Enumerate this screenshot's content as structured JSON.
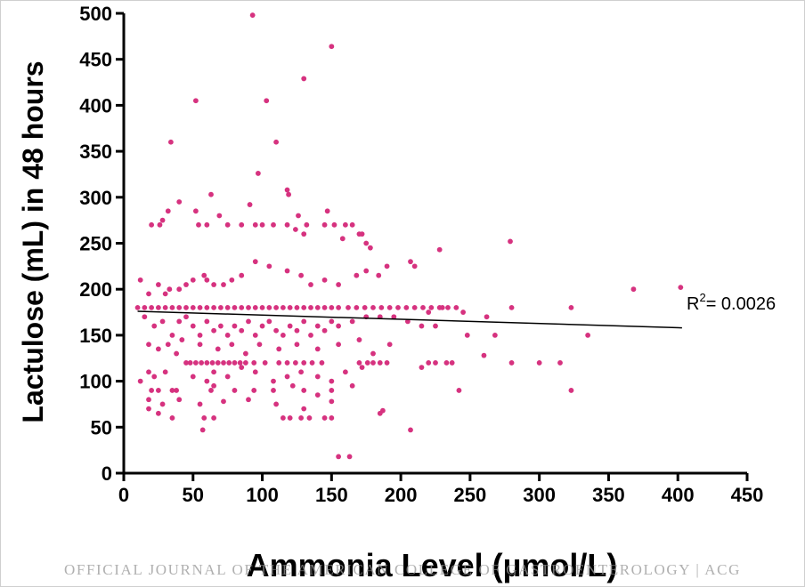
{
  "chart_data": {
    "type": "scatter",
    "xlabel": "Ammonia Level (µmol/L)",
    "ylabel": "Lactulose (mL) in 48 hours",
    "xlim": [
      0,
      450
    ],
    "ylim": [
      0,
      500
    ],
    "x_ticks": [
      0,
      50,
      100,
      150,
      200,
      250,
      300,
      350,
      400,
      450
    ],
    "y_ticks": [
      0,
      50,
      100,
      150,
      200,
      250,
      300,
      350,
      400,
      450,
      500
    ],
    "marker_color": "#d6327f",
    "line_color": "#000000",
    "annotation": {
      "base": "R",
      "sup": "2",
      "text": "= 0.0026"
    },
    "trendline": [
      [
        10,
        176
      ],
      [
        403,
        158
      ]
    ],
    "series": [
      {
        "points": [
          [
            93,
            498
          ],
          [
            150,
            464
          ],
          [
            130,
            429
          ],
          [
            103,
            405
          ],
          [
            52,
            405
          ],
          [
            110,
            360
          ],
          [
            34,
            360
          ],
          [
            97,
            326
          ],
          [
            118,
            308
          ],
          [
            119,
            303
          ],
          [
            63,
            303
          ],
          [
            91,
            292
          ],
          [
            40,
            295
          ],
          [
            52,
            285
          ],
          [
            32,
            285
          ],
          [
            147,
            285
          ],
          [
            126,
            280
          ],
          [
            69,
            280
          ],
          [
            28,
            275
          ],
          [
            20,
            270
          ],
          [
            26,
            270
          ],
          [
            54,
            270
          ],
          [
            60,
            270
          ],
          [
            75,
            270
          ],
          [
            85,
            270
          ],
          [
            95,
            270
          ],
          [
            100,
            270
          ],
          [
            108,
            270
          ],
          [
            118,
            270
          ],
          [
            124,
            265
          ],
          [
            130,
            260
          ],
          [
            132,
            270
          ],
          [
            145,
            270
          ],
          [
            152,
            270
          ],
          [
            160,
            270
          ],
          [
            165,
            270
          ],
          [
            170,
            260
          ],
          [
            158,
            255
          ],
          [
            175,
            250
          ],
          [
            178,
            245
          ],
          [
            172,
            260
          ],
          [
            228,
            243
          ],
          [
            279,
            252
          ],
          [
            207,
            230
          ],
          [
            210,
            225
          ],
          [
            190,
            225
          ],
          [
            184,
            215
          ],
          [
            175,
            220
          ],
          [
            168,
            215
          ],
          [
            155,
            205
          ],
          [
            145,
            210
          ],
          [
            135,
            205
          ],
          [
            128,
            215
          ],
          [
            118,
            220
          ],
          [
            105,
            225
          ],
          [
            95,
            230
          ],
          [
            85,
            215
          ],
          [
            78,
            210
          ],
          [
            72,
            205
          ],
          [
            65,
            205
          ],
          [
            60,
            210
          ],
          [
            58,
            215
          ],
          [
            50,
            210
          ],
          [
            45,
            205
          ],
          [
            40,
            200
          ],
          [
            33,
            200
          ],
          [
            30,
            195
          ],
          [
            25,
            205
          ],
          [
            12,
            210
          ],
          [
            18,
            195
          ],
          [
            368,
            200
          ],
          [
            402,
            202
          ],
          [
            220,
            175
          ],
          [
            230,
            180
          ],
          [
            245,
            175
          ],
          [
            262,
            170
          ],
          [
            280,
            180
          ],
          [
            323,
            180
          ],
          [
            10,
            180
          ],
          [
            15,
            180
          ],
          [
            20,
            180
          ],
          [
            25,
            180
          ],
          [
            30,
            180
          ],
          [
            35,
            180
          ],
          [
            40,
            180
          ],
          [
            45,
            180
          ],
          [
            50,
            180
          ],
          [
            55,
            180
          ],
          [
            60,
            180
          ],
          [
            65,
            180
          ],
          [
            70,
            180
          ],
          [
            75,
            180
          ],
          [
            80,
            180
          ],
          [
            85,
            180
          ],
          [
            90,
            180
          ],
          [
            95,
            180
          ],
          [
            100,
            180
          ],
          [
            105,
            180
          ],
          [
            110,
            180
          ],
          [
            115,
            180
          ],
          [
            120,
            180
          ],
          [
            125,
            180
          ],
          [
            130,
            180
          ],
          [
            135,
            180
          ],
          [
            140,
            180
          ],
          [
            145,
            180
          ],
          [
            150,
            180
          ],
          [
            155,
            180
          ],
          [
            162,
            180
          ],
          [
            168,
            180
          ],
          [
            174,
            180
          ],
          [
            180,
            180
          ],
          [
            186,
            180
          ],
          [
            192,
            180
          ],
          [
            198,
            180
          ],
          [
            204,
            180
          ],
          [
            210,
            180
          ],
          [
            216,
            180
          ],
          [
            222,
            180
          ],
          [
            228,
            180
          ],
          [
            234,
            180
          ],
          [
            240,
            180
          ],
          [
            15,
            170
          ],
          [
            22,
            160
          ],
          [
            28,
            165
          ],
          [
            35,
            150
          ],
          [
            40,
            165
          ],
          [
            45,
            170
          ],
          [
            50,
            160
          ],
          [
            55,
            150
          ],
          [
            60,
            165
          ],
          [
            65,
            155
          ],
          [
            70,
            160
          ],
          [
            75,
            150
          ],
          [
            80,
            160
          ],
          [
            85,
            155
          ],
          [
            90,
            165
          ],
          [
            95,
            150
          ],
          [
            100,
            160
          ],
          [
            105,
            165
          ],
          [
            110,
            155
          ],
          [
            115,
            150
          ],
          [
            120,
            160
          ],
          [
            125,
            155
          ],
          [
            130,
            165
          ],
          [
            135,
            150
          ],
          [
            140,
            160
          ],
          [
            145,
            155
          ],
          [
            150,
            165
          ],
          [
            155,
            160
          ],
          [
            165,
            165
          ],
          [
            175,
            170
          ],
          [
            185,
            170
          ],
          [
            195,
            170
          ],
          [
            205,
            165
          ],
          [
            215,
            160
          ],
          [
            225,
            160
          ],
          [
            248,
            150
          ],
          [
            268,
            150
          ],
          [
            335,
            150
          ],
          [
            18,
            140
          ],
          [
            25,
            135
          ],
          [
            32,
            140
          ],
          [
            38,
            130
          ],
          [
            42,
            145
          ],
          [
            55,
            140
          ],
          [
            68,
            135
          ],
          [
            78,
            140
          ],
          [
            88,
            130
          ],
          [
            98,
            140
          ],
          [
            112,
            135
          ],
          [
            125,
            140
          ],
          [
            140,
            135
          ],
          [
            155,
            140
          ],
          [
            170,
            145
          ],
          [
            180,
            130
          ],
          [
            192,
            140
          ],
          [
            260,
            128
          ],
          [
            45,
            120
          ],
          [
            48,
            120
          ],
          [
            52,
            120
          ],
          [
            56,
            120
          ],
          [
            60,
            120
          ],
          [
            64,
            120
          ],
          [
            68,
            120
          ],
          [
            72,
            120
          ],
          [
            76,
            120
          ],
          [
            80,
            120
          ],
          [
            84,
            120
          ],
          [
            88,
            120
          ],
          [
            94,
            120
          ],
          [
            102,
            120
          ],
          [
            112,
            120
          ],
          [
            118,
            120
          ],
          [
            124,
            120
          ],
          [
            130,
            120
          ],
          [
            136,
            120
          ],
          [
            143,
            120
          ],
          [
            170,
            120
          ],
          [
            176,
            120
          ],
          [
            180,
            120
          ],
          [
            185,
            120
          ],
          [
            190,
            120
          ],
          [
            215,
            115
          ],
          [
            220,
            120
          ],
          [
            225,
            120
          ],
          [
            233,
            120
          ],
          [
            237,
            120
          ],
          [
            280,
            120
          ],
          [
            300,
            120
          ],
          [
            315,
            120
          ],
          [
            12,
            100
          ],
          [
            18,
            110
          ],
          [
            22,
            105
          ],
          [
            30,
            110
          ],
          [
            50,
            105
          ],
          [
            60,
            100
          ],
          [
            65,
            110
          ],
          [
            75,
            105
          ],
          [
            85,
            115
          ],
          [
            95,
            110
          ],
          [
            108,
            100
          ],
          [
            118,
            105
          ],
          [
            128,
            110
          ],
          [
            140,
            105
          ],
          [
            150,
            100
          ],
          [
            160,
            110
          ],
          [
            172,
            115
          ],
          [
            20,
            90
          ],
          [
            25,
            90
          ],
          [
            35,
            90
          ],
          [
            38,
            90
          ],
          [
            63,
            90
          ],
          [
            65,
            95
          ],
          [
            80,
            90
          ],
          [
            94,
            90
          ],
          [
            108,
            90
          ],
          [
            122,
            95
          ],
          [
            130,
            90
          ],
          [
            140,
            85
          ],
          [
            150,
            90
          ],
          [
            165,
            95
          ],
          [
            242,
            90
          ],
          [
            323,
            90
          ],
          [
            18,
            80
          ],
          [
            28,
            75
          ],
          [
            40,
            80
          ],
          [
            55,
            75
          ],
          [
            72,
            78
          ],
          [
            90,
            80
          ],
          [
            110,
            75
          ],
          [
            130,
            70
          ],
          [
            150,
            78
          ],
          [
            18,
            70
          ],
          [
            25,
            65
          ],
          [
            35,
            60
          ],
          [
            58,
            60
          ],
          [
            65,
            60
          ],
          [
            115,
            60
          ],
          [
            120,
            60
          ],
          [
            128,
            60
          ],
          [
            134,
            60
          ],
          [
            145,
            60
          ],
          [
            150,
            60
          ],
          [
            185,
            65
          ],
          [
            187,
            68
          ],
          [
            57,
            47
          ],
          [
            207,
            47
          ],
          [
            155,
            18
          ],
          [
            163,
            18
          ]
        ]
      }
    ]
  },
  "watermark": "OFFICIAL JOURNAL OF THE AMERICAN COLLEGE OF GASTROENTEROLOGY | ACG"
}
